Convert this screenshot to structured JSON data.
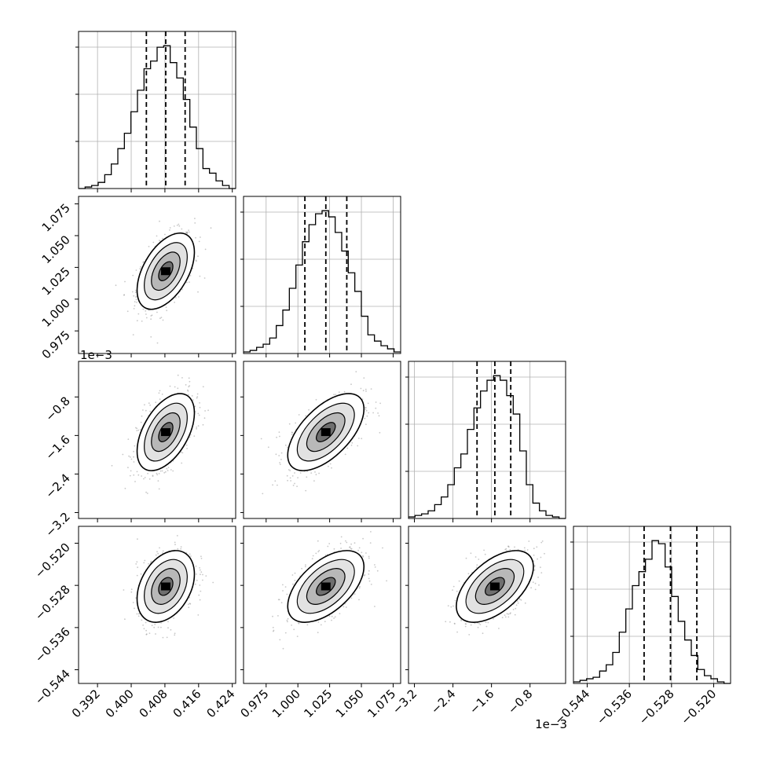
{
  "chart_data": {
    "type": "corner",
    "parameters": [
      {
        "range": [
          0.3875,
          0.4248
        ],
        "ticks": [
          0.392,
          0.4,
          0.408,
          0.416,
          0.424
        ],
        "tick_labels": [
          "0.392",
          "0.400",
          "0.408",
          "0.416",
          "0.424"
        ],
        "offset": "",
        "quantiles": [
          0.4036,
          0.4082,
          0.4128
        ],
        "mean": 0.4082,
        "sd": 0.0034
      },
      {
        "range": [
          0.9572,
          1.0809
        ],
        "ticks": [
          0.975,
          1.0,
          1.025,
          1.05,
          1.075
        ],
        "tick_labels": [
          "0.975",
          "1.000",
          "1.025",
          "1.050",
          "1.075"
        ],
        "offset": "",
        "quantiles": [
          1.0055,
          1.022,
          1.0385
        ],
        "mean": 1.022,
        "sd": 0.015
      },
      {
        "range": [
          -3.323,
          -0.061
        ],
        "ticks": [
          -3.2,
          -2.4,
          -1.6,
          -0.8
        ],
        "tick_labels": [
          "−3.2",
          "−2.4",
          "−1.6",
          "−0.8"
        ],
        "offset": "1e−3",
        "quantiles": [
          -1.9,
          -1.53,
          -1.2
        ],
        "mean": -1.53,
        "sd": 0.4
      },
      {
        "range": [
          -0.5466,
          -0.5168
        ],
        "ticks": [
          -0.544,
          -0.536,
          -0.528,
          -0.52
        ],
        "tick_labels": [
          "−0.544",
          "−0.536",
          "−0.528",
          "−0.520"
        ],
        "offset": "",
        "quantiles": [
          -0.5332,
          -0.5282,
          -0.5232
        ],
        "mean": -0.5282,
        "sd": 0.0034
      }
    ],
    "histograms": [
      [
        0,
        1,
        2,
        4,
        9,
        16,
        26,
        36,
        50,
        64,
        78,
        83,
        92,
        93,
        82,
        72,
        58,
        40,
        26,
        13,
        10,
        5,
        2,
        0
      ],
      [
        1,
        2,
        4,
        6,
        10,
        18,
        28,
        42,
        57,
        72,
        83,
        90,
        92,
        88,
        78,
        66,
        52,
        40,
        24,
        12,
        8,
        5,
        3,
        1
      ],
      [
        1,
        2,
        3,
        5,
        9,
        14,
        22,
        33,
        42,
        58,
        72,
        83,
        90,
        93,
        90,
        80,
        68,
        44,
        22,
        10,
        5,
        2,
        1,
        0
      ],
      [
        1,
        2,
        3,
        4,
        8,
        12,
        20,
        33,
        48,
        63,
        72,
        80,
        92,
        90,
        75,
        56,
        40,
        28,
        18,
        9,
        5,
        3,
        1,
        0
      ]
    ],
    "correlations": {
      "1-0": 0.5,
      "2-0": 0.5,
      "2-1": 0.6,
      "3-0": 0.35,
      "3-1": 0.55,
      "3-2": 0.55
    },
    "quantile_lines": "dashed",
    "grid": true
  }
}
